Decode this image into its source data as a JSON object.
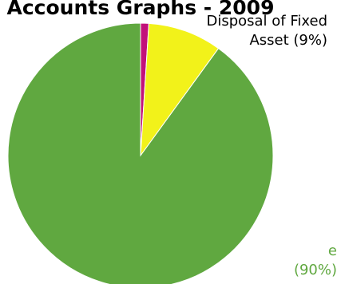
{
  "chart_data": {
    "type": "pie",
    "title": "Accounts Graphs - 2009",
    "series": [
      {
        "name": "",
        "categories": [
          "",
          "Disposal of Fixed Asset",
          ""
        ],
        "values": [
          1,
          9,
          90
        ],
        "labels": [
          "",
          "Disposal of Fixed Asset (9%)",
          "e (90%)"
        ],
        "colors": [
          "#c2117a",
          "#f2f21a",
          "#60a840"
        ],
        "label_colors": [
          "#c2117a",
          "#000000",
          "#60a840"
        ]
      }
    ],
    "start_angle_deg": 0,
    "direction": "clockwise",
    "legend": "none"
  }
}
